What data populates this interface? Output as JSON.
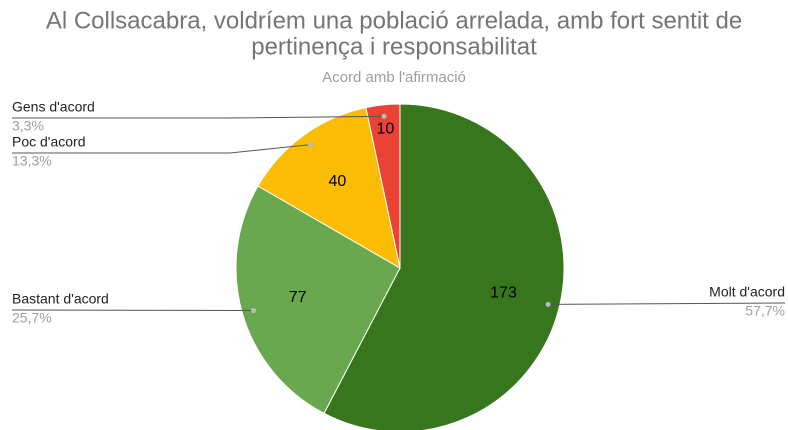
{
  "chart_data": {
    "type": "pie",
    "title": "Al Collsacabra, voldríem una població arrelada, amb fort sentit de",
    "title_line2": "pertinença i responsabilitat",
    "subtitle": "Acord amb l'afirmació",
    "categories": [
      "Molt d'acord",
      "Bastant d'acord",
      "Poc d'acord",
      "Gens d'acord"
    ],
    "values": [
      173,
      77,
      40,
      10
    ],
    "percent_labels": [
      "57,7%",
      "25,7%",
      "13,3%",
      "3,3%"
    ],
    "colors": [
      "#38761d",
      "#6aa84f",
      "#fbbc04",
      "#ea4335"
    ]
  }
}
